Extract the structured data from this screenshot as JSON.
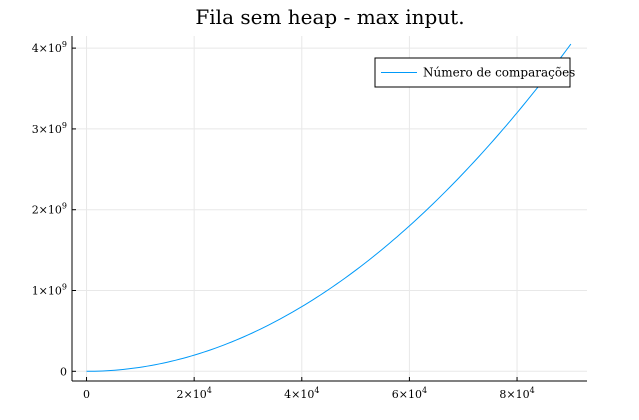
{
  "chart_data": {
    "type": "line",
    "title": "Fila sem heap - max input.",
    "xlabel": "",
    "ylabel": "",
    "xlim": [
      -2700,
      93000
    ],
    "ylim": [
      -120000000,
      4150000000
    ],
    "x_ticks": [
      {
        "value": 0,
        "label": "0"
      },
      {
        "value": 20000,
        "mantissa": "2×10",
        "exp": "4"
      },
      {
        "value": 40000,
        "mantissa": "4×10",
        "exp": "4"
      },
      {
        "value": 60000,
        "mantissa": "6×10",
        "exp": "4"
      },
      {
        "value": 80000,
        "mantissa": "8×10",
        "exp": "4"
      }
    ],
    "y_ticks": [
      {
        "value": 0,
        "label": "0"
      },
      {
        "value": 1000000000,
        "mantissa": "1×10",
        "exp": "9"
      },
      {
        "value": 2000000000,
        "mantissa": "2×10",
        "exp": "9"
      },
      {
        "value": 3000000000,
        "mantissa": "3×10",
        "exp": "9"
      },
      {
        "value": 4000000000,
        "mantissa": "4×10",
        "exp": "9"
      }
    ],
    "grid": true,
    "legend_position": "top-right",
    "series": [
      {
        "name": "Número de comparações",
        "color": "#009AF9",
        "x": [
          0,
          10000,
          20000,
          30000,
          40000,
          50000,
          60000,
          70000,
          80000,
          90000
        ],
        "y": [
          0,
          50000000,
          200000000,
          450000000,
          800000000,
          1250000000,
          1800000000,
          2450000000,
          3200000000,
          4050000000
        ]
      }
    ]
  }
}
